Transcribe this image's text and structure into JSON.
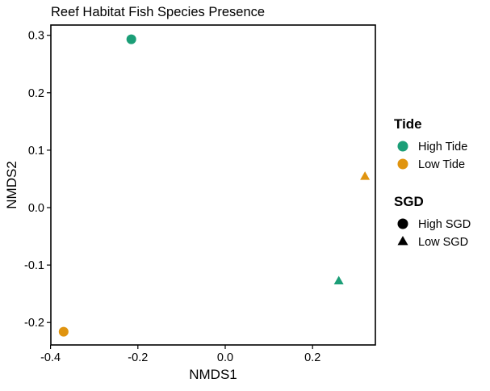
{
  "chart_data": {
    "type": "scatter",
    "title": "Reef Habitat Fish Species Presence",
    "xlabel": "NMDS1",
    "ylabel": "NMDS2",
    "xlim": [
      -0.4,
      0.35
    ],
    "ylim": [
      -0.24,
      0.32
    ],
    "xticks": [
      -0.4,
      -0.2,
      0.0,
      0.2
    ],
    "xtick_labels": [
      "-0.4",
      "-0.2",
      "0.0",
      "0.2"
    ],
    "yticks": [
      -0.2,
      -0.1,
      0.0,
      0.1,
      0.2,
      0.3
    ],
    "ytick_labels": [
      "-0.2",
      "-0.1",
      "0.0",
      "0.1",
      "0.2",
      "0.3"
    ],
    "grid": false,
    "legend_placement": "right",
    "points": [
      {
        "x": -0.215,
        "y": 0.293,
        "tide": "High Tide",
        "sgd": "High SGD"
      },
      {
        "x": 0.26,
        "y": -0.128,
        "tide": "High Tide",
        "sgd": "Low SGD"
      },
      {
        "x": 0.32,
        "y": 0.054,
        "tide": "Low Tide",
        "sgd": "Low SGD"
      },
      {
        "x": -0.37,
        "y": -0.216,
        "tide": "Low Tide",
        "sgd": "High SGD"
      }
    ],
    "legends": [
      {
        "title": "Tide",
        "kind": "color",
        "items": [
          {
            "label": "High Tide",
            "color": "#1b9e77"
          },
          {
            "label": "Low Tide",
            "color": "#e0940f"
          }
        ]
      },
      {
        "title": "SGD",
        "kind": "shape",
        "items": [
          {
            "label": "High SGD",
            "shape": "circle"
          },
          {
            "label": "Low SGD",
            "shape": "triangle"
          }
        ]
      }
    ]
  }
}
